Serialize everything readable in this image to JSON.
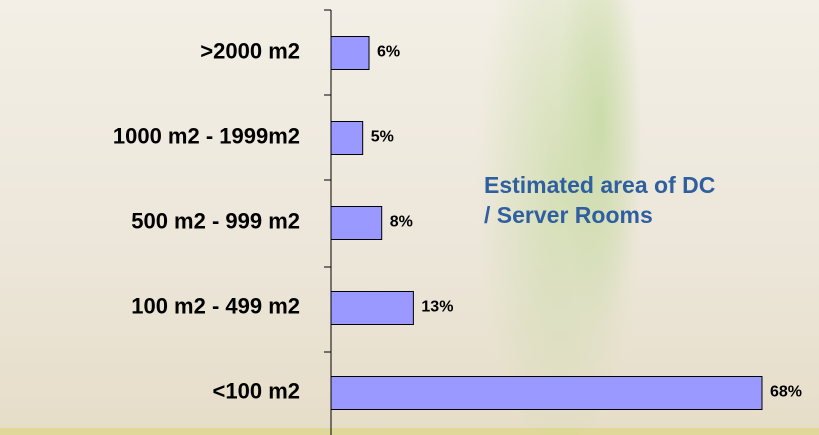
{
  "chart_data": {
    "type": "hbar",
    "title": "Estimated area of DC / Server Rooms",
    "categories": [
      ">2000 m2",
      "1000 m2 - 1999m2",
      "500 m2 - 999 m2",
      "100 m2 - 499 m2",
      "<100 m2"
    ],
    "values": [
      6,
      5,
      8,
      13,
      68
    ],
    "value_labels": [
      "6%",
      "5%",
      "8%",
      "13%",
      "68%"
    ],
    "color": "#9999ff"
  }
}
